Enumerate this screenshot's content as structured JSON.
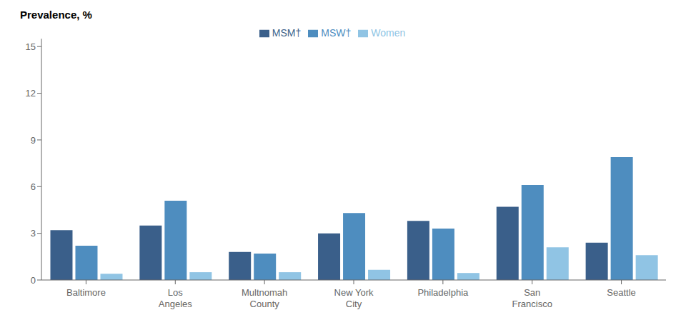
{
  "chart_data": {
    "type": "bar",
    "ylabel": "Prevalence, %",
    "categories": [
      "Baltimore",
      "Los\nAngeles",
      "Multnomah\nCounty",
      "New York\nCity",
      "Philadelphia",
      "San\nFrancisco",
      "Seattle"
    ],
    "series": [
      {
        "name": "MSM†",
        "color": "#3a5f8a",
        "values": [
          3.2,
          3.5,
          1.8,
          3.0,
          3.8,
          4.7,
          2.4
        ]
      },
      {
        "name": "MSW†",
        "color": "#4e8dbf",
        "values": [
          2.2,
          5.1,
          1.7,
          4.3,
          3.3,
          6.1,
          7.9
        ]
      },
      {
        "name": "Women",
        "color": "#90c4e4",
        "values": [
          0.4,
          0.5,
          0.5,
          0.65,
          0.45,
          2.1,
          1.6
        ]
      }
    ],
    "ylim": [
      0,
      15.5
    ],
    "yticks": [
      0,
      3,
      6,
      9,
      12,
      15
    ],
    "grid": false,
    "legend": "top"
  }
}
